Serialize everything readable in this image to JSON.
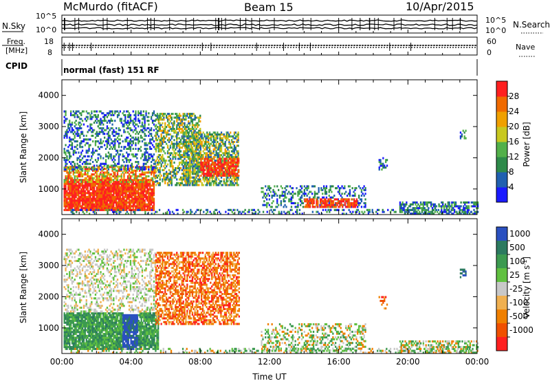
{
  "header": {
    "station": "McMurdo (fitACF)",
    "beam": "Beam 15",
    "date": "10/Apr/2015"
  },
  "noise_panel": {
    "left_label": "N.Sky",
    "right_label": "N.Search",
    "tick_top": "10^5",
    "tick_bottom": "10^0"
  },
  "freq_panel": {
    "left_label_1": "Freq.",
    "left_label_2": "[MHz]",
    "left_tick_top": "18",
    "left_tick_bottom": "8",
    "right_label": "Nave",
    "right_tick_top": "60",
    "right_tick_bottom": "0"
  },
  "cpid": {
    "label": "CPID",
    "value": "normal (fast) 151 RF"
  },
  "colors": {
    "power_scale": [
      "#1a1aff",
      "#2060b0",
      "#2e8a4a",
      "#52b04a",
      "#c8c820",
      "#f0a000",
      "#f06a00",
      "#ff2020"
    ],
    "velocity_scale": [
      "#ff2020",
      "#f05000",
      "#f08000",
      "#f0b050",
      "#c8c8c8",
      "#60c040",
      "#3c9a50",
      "#2c7a60",
      "#2a50c0"
    ]
  },
  "chart_data": [
    {
      "type": "heatmap",
      "name": "power",
      "ylabel": "Slant Range [km]",
      "xlabel": "",
      "ylim": [
        180,
        4500
      ],
      "yticks": [
        "1000",
        "2000",
        "3000",
        "4000"
      ],
      "colorbar": {
        "label": "Power [dB]",
        "ticks": [
          "4",
          "8",
          "12",
          "16",
          "20",
          "24",
          "28"
        ],
        "range": [
          0,
          30
        ]
      }
    },
    {
      "type": "heatmap",
      "name": "velocity",
      "ylabel": "Slant Range [km]",
      "xlabel": "Time UT",
      "ylim": [
        180,
        4500
      ],
      "yticks": [
        "1000",
        "2000",
        "3000",
        "4000"
      ],
      "xticks": [
        "00:00",
        "04:00",
        "08:00",
        "12:00",
        "16:00",
        "20:00",
        "00:00"
      ],
      "colorbar": {
        "label": "Velocity [m s",
        "label_sup": "-1",
        "label_end": "]",
        "ticks": [
          "1000",
          "500",
          "100",
          "25",
          "-25",
          "-100",
          "-500",
          "-1000"
        ]
      }
    }
  ]
}
